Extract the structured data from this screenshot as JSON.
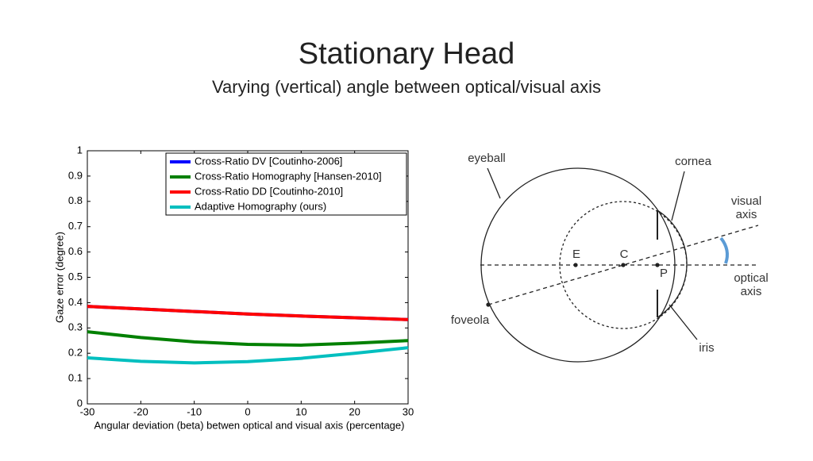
{
  "slide": {
    "title": "Stationary Head",
    "subtitle": "Varying (vertical) angle between optical/visual axis"
  },
  "chart_data": {
    "type": "line",
    "xlabel": "Angular deviation (beta) betwen optical and visual axis (percentage)",
    "ylabel": "Gaze error (degree)",
    "x": [
      -30,
      -20,
      -10,
      0,
      10,
      20,
      30
    ],
    "series": [
      {
        "name": "Cross-Ratio DV [Coutinho-2006]",
        "color": "#0000ff",
        "values": [
          0.385,
          0.375,
          0.365,
          0.355,
          0.347,
          0.34,
          0.333
        ]
      },
      {
        "name": "Cross-Ratio Homography [Hansen-2010]",
        "color": "#008000",
        "values": [
          0.285,
          0.262,
          0.245,
          0.235,
          0.232,
          0.24,
          0.25
        ]
      },
      {
        "name": "Cross-Ratio DD [Coutinho-2010]",
        "color": "#ff0000",
        "values": [
          0.385,
          0.375,
          0.365,
          0.355,
          0.347,
          0.34,
          0.333
        ]
      },
      {
        "name": "Adaptive Homography (ours)",
        "color": "#00bfbf",
        "values": [
          0.182,
          0.168,
          0.162,
          0.167,
          0.18,
          0.2,
          0.222
        ]
      }
    ],
    "xlim": [
      -30,
      30
    ],
    "xticks": [
      -30,
      -20,
      -10,
      0,
      10,
      20,
      30
    ],
    "ylim": [
      0,
      1
    ],
    "yticks": [
      0,
      0.1,
      0.2,
      0.3,
      0.4,
      0.5,
      0.6,
      0.7,
      0.8,
      0.9,
      1
    ],
    "legend": "upper right"
  },
  "diagram": {
    "eyeball": "eyeball",
    "cornea": "cornea",
    "visual_axis": [
      "visual",
      "axis"
    ],
    "optical_axis": [
      "optical",
      "axis"
    ],
    "foveola": "foveola",
    "iris": "iris",
    "E": "E",
    "C": "C",
    "P": "P"
  }
}
